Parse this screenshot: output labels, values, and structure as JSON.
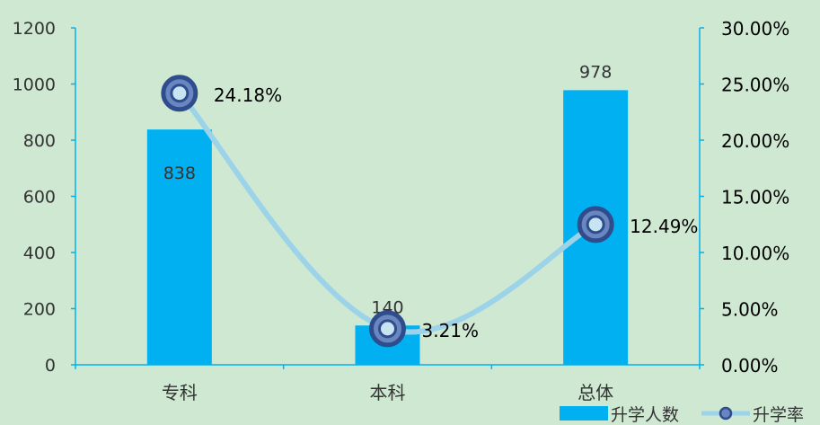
{
  "chart_data": {
    "type": "bar",
    "categories": [
      "专科",
      "本科",
      "总体"
    ],
    "series": [
      {
        "name": "升学人数",
        "type": "bar",
        "axis": "left",
        "values": [
          838,
          140,
          978
        ],
        "labels": [
          "838",
          "140",
          "978"
        ]
      },
      {
        "name": "升学率",
        "type": "line",
        "axis": "right",
        "values": [
          24.18,
          3.21,
          12.49
        ],
        "labels": [
          "24.18%",
          "3.21%",
          "12.49%"
        ]
      }
    ],
    "ylim_left": [
      0,
      1200
    ],
    "yticks_left": [
      0,
      200,
      400,
      600,
      800,
      1000,
      1200
    ],
    "ylim_right": [
      0,
      30
    ],
    "yticks_right": [
      "0.00%",
      "5.00%",
      "10.00%",
      "15.00%",
      "20.00%",
      "25.00%",
      "30.00%"
    ],
    "legend_position": "bottom-right",
    "colors": {
      "background": "#cfe8d2",
      "bar": "#00b0f0",
      "line": "#9dd3e8",
      "marker_outer": "#2f4d8c",
      "marker_inner": "#c6e4f2",
      "axis": "#00b0f0",
      "text": "#000000"
    }
  }
}
